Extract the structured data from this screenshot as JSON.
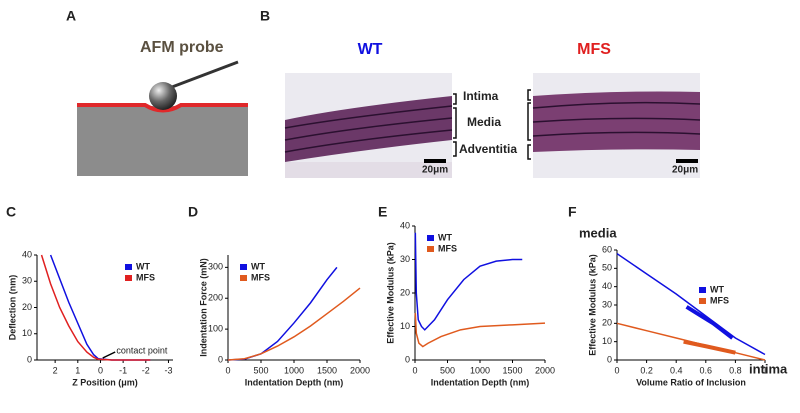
{
  "panel_a": {
    "label": "A",
    "probe_label": "AFM probe"
  },
  "panel_b": {
    "label": "B",
    "groups": [
      "WT",
      "MFS"
    ],
    "layers": [
      "Intima",
      "Media",
      "Adventitia"
    ],
    "scale_bar": "20μm"
  },
  "chart_data": [
    {
      "type": "line",
      "label": "C",
      "x_label": "Z Position (μm)",
      "y_label": "Deflection (nm)",
      "xlim": [
        2.8,
        -3.2
      ],
      "xticks": [
        2,
        1,
        0,
        -1,
        -2,
        -3
      ],
      "ylim": [
        0,
        40
      ],
      "yticks": [
        0,
        10,
        20,
        30,
        40
      ],
      "legend": "upper right",
      "annotation": "contact point",
      "series": [
        {
          "name": "WT",
          "color": "#1010e0",
          "x": [
            2.2,
            1.8,
            1.4,
            1.0,
            0.6,
            0.3,
            0.1,
            -0.5,
            -1,
            -1.5,
            -2.2
          ],
          "values": [
            40,
            31,
            22,
            14,
            6,
            2,
            0.5,
            0,
            0,
            0,
            0
          ]
        },
        {
          "name": "MFS",
          "color": "#e02020",
          "x": [
            2.6,
            2.2,
            1.8,
            1.4,
            1.0,
            0.6,
            0.3,
            0.1,
            -0.5,
            -1,
            -2.2
          ],
          "values": [
            40,
            29,
            20,
            13,
            7,
            3,
            1,
            0.3,
            0,
            0,
            0
          ]
        }
      ]
    },
    {
      "type": "line",
      "label": "D",
      "x_label": "Indentation Depth (nm)",
      "y_label": "Indentation Force (mN)",
      "xlim": [
        0,
        2000
      ],
      "xticks": [
        0,
        500,
        1000,
        1500,
        2000
      ],
      "ylim": [
        0,
        340
      ],
      "yticks": [
        0,
        100,
        200,
        300
      ],
      "legend": "upper left",
      "series": [
        {
          "name": "WT",
          "color": "#1010e0",
          "x": [
            0,
            250,
            500,
            750,
            1000,
            1250,
            1500,
            1650
          ],
          "values": [
            0,
            3,
            20,
            60,
            120,
            185,
            260,
            300
          ]
        },
        {
          "name": "MFS",
          "color": "#e05a1e",
          "x": [
            0,
            250,
            500,
            750,
            1000,
            1250,
            1500,
            1750,
            2000
          ],
          "values": [
            0,
            4,
            20,
            45,
            75,
            110,
            150,
            190,
            233
          ]
        }
      ]
    },
    {
      "type": "line",
      "label": "E",
      "x_label": "Indentation Depth (nm)",
      "y_label": "Effective Modulus (kPa)",
      "xlim": [
        0,
        2000
      ],
      "xticks": [
        0,
        500,
        1000,
        1500,
        2000
      ],
      "ylim": [
        0,
        40
      ],
      "yticks": [
        0,
        10,
        20,
        30,
        40
      ],
      "legend": "upper left",
      "series": [
        {
          "name": "WT",
          "color": "#1010e0",
          "x": [
            5,
            20,
            50,
            100,
            150,
            300,
            500,
            750,
            1000,
            1250,
            1500,
            1650
          ],
          "values": [
            38,
            20,
            12,
            10,
            9,
            12,
            18,
            24,
            28,
            29.5,
            30,
            30
          ]
        },
        {
          "name": "MFS",
          "color": "#e05a1e",
          "x": [
            5,
            20,
            60,
            120,
            200,
            400,
            700,
            1000,
            1500,
            2000
          ],
          "values": [
            14,
            8,
            5,
            4,
            5,
            7,
            9,
            10,
            10.5,
            11
          ]
        }
      ]
    },
    {
      "type": "line",
      "label": "F",
      "x_label": "Volume Ratio of Inclusion",
      "y_label": "Effective Modulus (kPa)",
      "xlim": [
        0,
        1
      ],
      "xticks": [
        0,
        0.2,
        0.4,
        0.6,
        0.8,
        1
      ],
      "ylim": [
        0,
        60
      ],
      "yticks": [
        0,
        10,
        20,
        30,
        40,
        50,
        60
      ],
      "legend": "center right",
      "annotations": [
        "media",
        "intima"
      ],
      "series": [
        {
          "color": "#1010e0",
          "x": [
            0,
            0.2,
            0.4,
            0.6,
            0.8,
            1
          ],
          "values": [
            58,
            47,
            36,
            24,
            12,
            3
          ]
        },
        {
          "name": "WT",
          "color": "#1010e0",
          "line_width": 4,
          "x": [
            0.47,
            0.55,
            0.65,
            0.78
          ],
          "values": [
            29,
            25,
            20,
            12
          ]
        },
        {
          "color": "#e05a1e",
          "x": [
            0,
            0.2,
            0.4,
            0.6,
            0.8,
            1
          ],
          "values": [
            20,
            16,
            12,
            8,
            4,
            0
          ]
        },
        {
          "name": "MFS",
          "color": "#e05a1e",
          "line_width": 4,
          "x": [
            0.45,
            0.6,
            0.8
          ],
          "values": [
            10,
            7.5,
            4
          ]
        }
      ]
    }
  ]
}
